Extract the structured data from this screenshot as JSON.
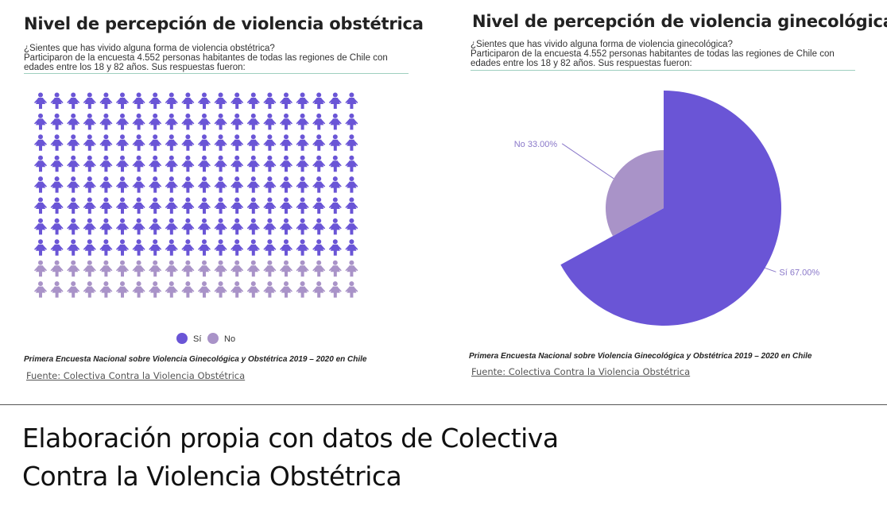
{
  "left": {
    "title": "Nivel de percepción de violencia obstétrica",
    "question": "¿Sientes que has vivido alguna forma de violencia obstétrica?",
    "description_lines": [
      "Participaron de la encuesta 4.552 personas habitantes de todas las regiones de Chile con",
      "edades entre los 18 y 82 años. Sus respuestas fueron:"
    ],
    "survey_name": "Primera Encuesta Nacional sobre Violencia Ginecológica y Obstétrica 2019 – 2020 en Chile",
    "source_link": "Fuente: Colectiva Contra la Violencia Obstétrica"
  },
  "right": {
    "title": "Nivel de percepción de violencia ginecológica",
    "question": "¿Sientes que has vivido alguna forma de violencia ginecológica?",
    "description_lines": [
      "Participaron de la encuesta 4.552 personas habitantes de todas las regiones de Chile con",
      "edades entre los 18 y 82 años. Sus respuestas fueron:"
    ],
    "survey_name": "Primera Encuesta Nacional sobre Violencia Ginecológica y Obstétrica 2019 – 2020 en Chile",
    "source_link": "Fuente: Colectiva Contra la Violencia Obstétrica"
  },
  "caption_lines": [
    "Elaboración propia con datos de Colectiva",
    "Contra la Violencia Obstétrica"
  ],
  "colors": {
    "si": "#6a55d6",
    "no": "#a993c8",
    "rule": "#9fcfbf",
    "label": "#8a78c9"
  },
  "chart_data": [
    {
      "type": "pictogram",
      "icon": "woman-icon",
      "rows": 10,
      "cols": 20,
      "categories": [
        "Sí",
        "No"
      ],
      "values": [
        160,
        40
      ],
      "legend_position": "bottom-center"
    },
    {
      "type": "pie",
      "categories": [
        "Sí",
        "No"
      ],
      "values": [
        67.0,
        33.0
      ],
      "labels": [
        "Sí 67.00%",
        "No 33.00%"
      ]
    }
  ]
}
